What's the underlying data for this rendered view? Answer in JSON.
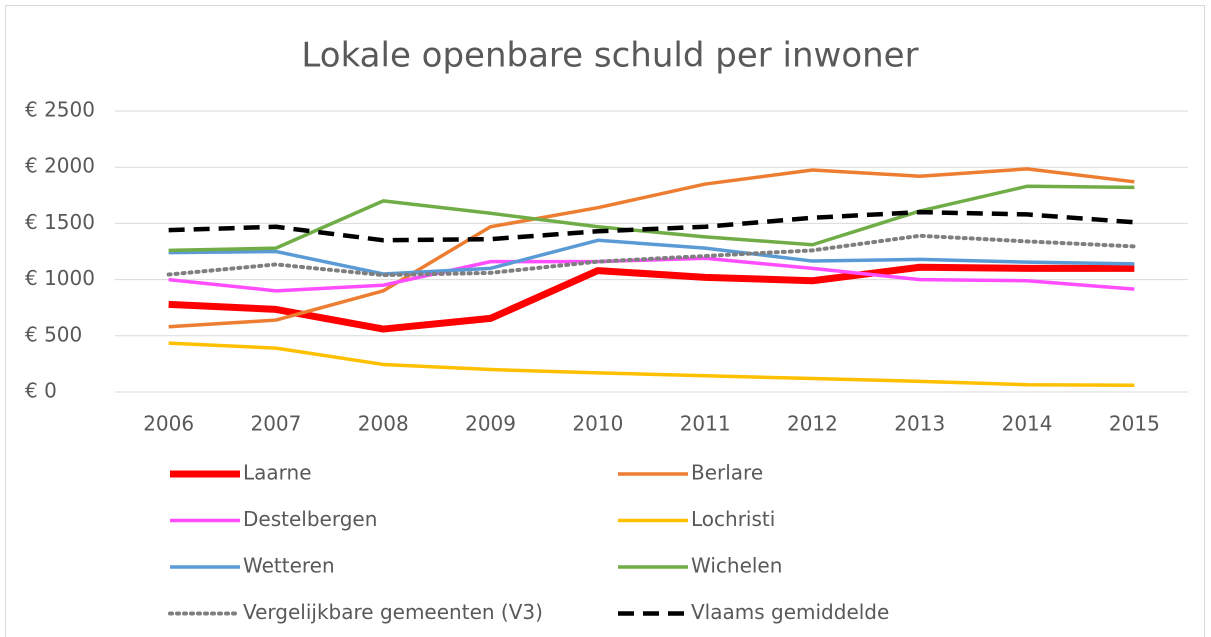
{
  "chart_data": {
    "type": "line",
    "title": "Lokale openbare schuld per inwoner",
    "categories": [
      "2006",
      "2007",
      "2008",
      "2009",
      "2010",
      "2011",
      "2012",
      "2013",
      "2014",
      "2015"
    ],
    "ylim": [
      0,
      2500
    ],
    "yticks": [
      {
        "value": 0,
        "label": "€ 0"
      },
      {
        "value": 500,
        "label": "€ 500"
      },
      {
        "value": 1000,
        "label": "€ 1000"
      },
      {
        "value": 1500,
        "label": "€ 1500"
      },
      {
        "value": 2000,
        "label": "€ 2000"
      },
      {
        "value": 2500,
        "label": "€ 2500"
      }
    ],
    "grid": true,
    "legend": "bottom",
    "series": [
      {
        "name": "Laarne",
        "color": "#ff0000",
        "line_width": 7,
        "line_style": "solid",
        "values": [
          780,
          735,
          560,
          655,
          1080,
          1020,
          990,
          1110,
          1100,
          1100
        ]
      },
      {
        "name": "Berlare",
        "color": "#ed7d31",
        "line_width": 3.5,
        "line_style": "solid",
        "values": [
          580,
          640,
          900,
          1470,
          1640,
          1850,
          1975,
          1920,
          1985,
          1870
        ]
      },
      {
        "name": "Destelbergen",
        "color": "#ff4dff",
        "line_width": 3.5,
        "line_style": "solid",
        "values": [
          1000,
          900,
          950,
          1160,
          1160,
          1190,
          1100,
          1000,
          990,
          915
        ]
      },
      {
        "name": "Lochristi",
        "color": "#ffc000",
        "line_width": 3.5,
        "line_style": "solid",
        "values": [
          435,
          390,
          245,
          200,
          170,
          145,
          120,
          95,
          65,
          60
        ]
      },
      {
        "name": "Wetteren",
        "color": "#5b9bd5",
        "line_width": 3.5,
        "line_style": "solid",
        "values": [
          1240,
          1250,
          1050,
          1100,
          1350,
          1280,
          1165,
          1180,
          1155,
          1140
        ]
      },
      {
        "name": "Wichelen",
        "color": "#70ad47",
        "line_width": 3.5,
        "line_style": "solid",
        "values": [
          1260,
          1280,
          1700,
          1590,
          1470,
          1380,
          1310,
          1610,
          1830,
          1820
        ]
      },
      {
        "name": "Vergelijkbare gemeenten (V3)",
        "color": "#7f7f7f",
        "line_width": 4,
        "line_style": "dotted",
        "values": [
          1045,
          1135,
          1040,
          1060,
          1160,
          1210,
          1260,
          1390,
          1340,
          1295
        ]
      },
      {
        "name": "Vlaams gemiddelde",
        "color": "#000000",
        "line_width": 4.5,
        "line_style": "dashed",
        "values": [
          1440,
          1470,
          1350,
          1360,
          1430,
          1470,
          1550,
          1600,
          1580,
          1510
        ]
      }
    ]
  }
}
